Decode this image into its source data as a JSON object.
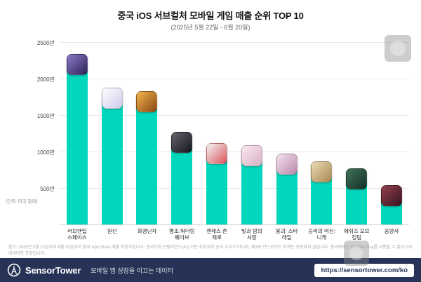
{
  "chart_data": {
    "type": "bar",
    "title": "중국 iOS 서브컬처 모바일 게임 매출 순위 TOP 10",
    "subtitle": "(2025년 5월 22일 - 6월 20일)",
    "unit_note": "(단위: 미국 달러)",
    "ylim": [
      0,
      2500
    ],
    "y_unit": "만 (USD, 만 단위)",
    "grid": true,
    "legend": false,
    "bar_color": "#00D7BD",
    "y_ticks": [
      {
        "value": 2500,
        "label": "2500만"
      },
      {
        "value": 2000,
        "label": "2000만"
      },
      {
        "value": 1500,
        "label": "1500만"
      },
      {
        "value": 1000,
        "label": "1000만"
      },
      {
        "value": 500,
        "label": "500만"
      }
    ],
    "items": [
      {
        "rank": 1,
        "label": "러브앤딥\n스페이스",
        "value": 2160,
        "icon": "love-and-deepspace-app-icon",
        "icon_colors": [
          "#8a79c9",
          "#2e2455"
        ]
      },
      {
        "rank": 2,
        "label": "원신",
        "value": 1700,
        "icon": "genshin-impact-app-icon",
        "icon_colors": [
          "#ffffff",
          "#cfc8ec"
        ]
      },
      {
        "rank": 3,
        "label": "화영닌자",
        "value": 1650,
        "icon": "naruto-mobile-app-icon",
        "icon_colors": [
          "#f2b44e",
          "#8a4712"
        ]
      },
      {
        "rank": 4,
        "label": "명조:워더링\n웨이브",
        "value": 1100,
        "icon": "wuthering-waves-app-icon",
        "icon_colors": [
          "#63636e",
          "#17171d"
        ]
      },
      {
        "rank": 5,
        "label": "젠레스 존\n제로",
        "value": 940,
        "icon": "zenless-zone-zero-app-icon",
        "icon_colors": [
          "#f6f6f6",
          "#d8555c"
        ]
      },
      {
        "rank": 6,
        "label": "빛과 밤의\n사랑",
        "value": 915,
        "icon": "light-and-night-app-icon",
        "icon_colors": [
          "#f9e9ef",
          "#d9aec4"
        ]
      },
      {
        "rank": 7,
        "label": "붕괴: 스타\n레일",
        "value": 800,
        "icon": "honkai-star-rail-app-icon",
        "icon_colors": [
          "#f2e3ec",
          "#bb86ad"
        ]
      },
      {
        "rank": 8,
        "label": "승리의 여신:\n니케",
        "value": 690,
        "icon": "nikke-app-icon",
        "icon_colors": [
          "#e9dab4",
          "#a98a52"
        ]
      },
      {
        "rank": 9,
        "label": "애쉬즈 오브\n킹덤",
        "value": 595,
        "icon": "ashes-of-the-kingdom-app-icon",
        "icon_colors": [
          "#3f7257",
          "#152f28"
        ]
      },
      {
        "rank": 10,
        "label": "음양사",
        "value": 370,
        "icon": "onmyoji-app-icon",
        "icon_colors": [
          "#93404f",
          "#3a141f"
        ]
      }
    ]
  },
  "footnote": "참고: 2025년 5월 22일부터 6월 20일까지 중국 App Store 매출 추정치입니다. 센서타워 인텔리전스(AI) 기반 추정치로 공식 수치가 아니며, 제3자 안드로이드 마켓은 포함하지 않습니다. 중국에서는 Google Play를 사용할 수 없어 iOS 데이터만 포함됩니다.",
  "footer": {
    "brand": "SensorTower",
    "tagline": "모바일 앱 성장을 이끄는 데이터",
    "url": "https://sensortower.com/ko",
    "bg_color": "#263357"
  }
}
